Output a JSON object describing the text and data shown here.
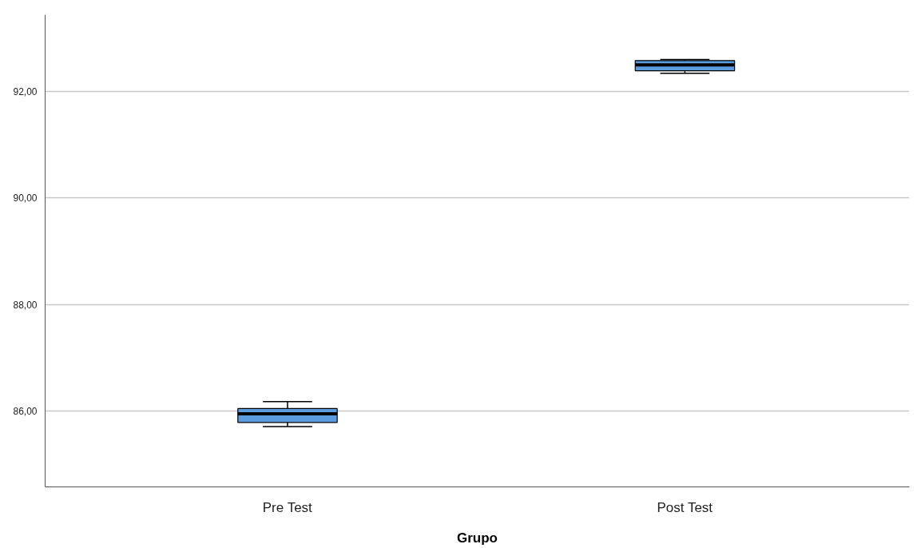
{
  "chart_data": {
    "type": "box",
    "xlabel": "Grupo",
    "categories": [
      "Pre Test",
      "Post Test"
    ],
    "color": "#5b9be0",
    "boxes": [
      {
        "low": 85.71,
        "q1": 85.79,
        "median": 85.95,
        "q3": 86.05,
        "high": 86.18
      },
      {
        "low": 92.34,
        "q1": 92.39,
        "median": 92.5,
        "q3": 92.58,
        "high": 92.6
      }
    ],
    "ylim": [
      84.58,
      93.44
    ],
    "yticks": [
      {
        "value": 86,
        "label": "86,00"
      },
      {
        "value": 88,
        "label": "88,00"
      },
      {
        "value": 90,
        "label": "90,00"
      },
      {
        "value": 92,
        "label": "92,00"
      }
    ],
    "grid": "y"
  }
}
